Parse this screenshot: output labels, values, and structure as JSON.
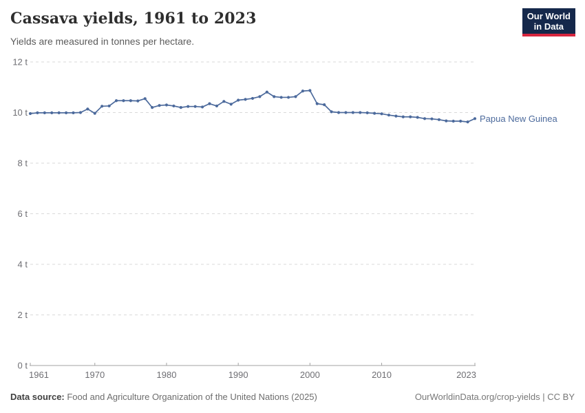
{
  "header": {
    "title": "Cassava yields, 1961 to 2023",
    "subtitle": "Yields are measured in tonnes per hectare."
  },
  "logo": {
    "line1": "Our World",
    "line2": "in Data"
  },
  "footer": {
    "source_label": "Data source:",
    "source_text": " Food and Agriculture Organization of the United Nations (2025)",
    "credit": "OurWorldinData.org/crop-yields | CC BY"
  },
  "colors": {
    "series_blue": "#4C6A9C",
    "logo_navy": "#15284B",
    "logo_red": "#D7263F",
    "grid_gray": "#d9d9d9",
    "axis_gray": "#a3a3a3",
    "tick_text_gray": "#6e6e73"
  },
  "chart_data": {
    "type": "line",
    "title": "Cassava yields, 1961 to 2023",
    "subtitle": "Yields are measured in tonnes per hectare.",
    "unit": "t",
    "ylabel": "tonnes per hectare",
    "ylim": [
      0,
      12
    ],
    "yticks": [
      0,
      2,
      4,
      6,
      8,
      10,
      12
    ],
    "ytick_format": "{v} t",
    "xlim": [
      1961,
      2023
    ],
    "xticks": [
      1961,
      1970,
      1980,
      1990,
      2000,
      2010,
      2023
    ],
    "grid": "dashed-horizontal",
    "legend_position": "end-of-line-label",
    "series": [
      {
        "name": "Papua New Guinea",
        "color": "#4C6A9C",
        "x": [
          1961,
          1962,
          1963,
          1964,
          1965,
          1966,
          1967,
          1968,
          1969,
          1970,
          1971,
          1972,
          1973,
          1974,
          1975,
          1976,
          1977,
          1978,
          1979,
          1980,
          1981,
          1982,
          1983,
          1984,
          1985,
          1986,
          1987,
          1988,
          1989,
          1990,
          1991,
          1992,
          1993,
          1994,
          1995,
          1996,
          1997,
          1998,
          1999,
          2000,
          2001,
          2002,
          2003,
          2004,
          2005,
          2006,
          2007,
          2008,
          2009,
          2010,
          2011,
          2012,
          2013,
          2014,
          2015,
          2016,
          2017,
          2018,
          2019,
          2020,
          2021,
          2022,
          2023
        ],
        "values": [
          9.96,
          9.99,
          9.99,
          9.99,
          9.99,
          9.99,
          9.99,
          10.0,
          10.14,
          9.97,
          10.25,
          10.26,
          10.47,
          10.47,
          10.47,
          10.46,
          10.55,
          10.2,
          10.28,
          10.3,
          10.26,
          10.2,
          10.24,
          10.24,
          10.22,
          10.35,
          10.26,
          10.44,
          10.33,
          10.49,
          10.52,
          10.56,
          10.63,
          10.81,
          10.63,
          10.6,
          10.6,
          10.63,
          10.85,
          10.87,
          10.35,
          10.31,
          10.03,
          10.0,
          10.0,
          10.0,
          10.0,
          9.99,
          9.97,
          9.95,
          9.9,
          9.86,
          9.83,
          9.83,
          9.81,
          9.76,
          9.75,
          9.72,
          9.67,
          9.66,
          9.66,
          9.63,
          9.76
        ]
      }
    ]
  }
}
